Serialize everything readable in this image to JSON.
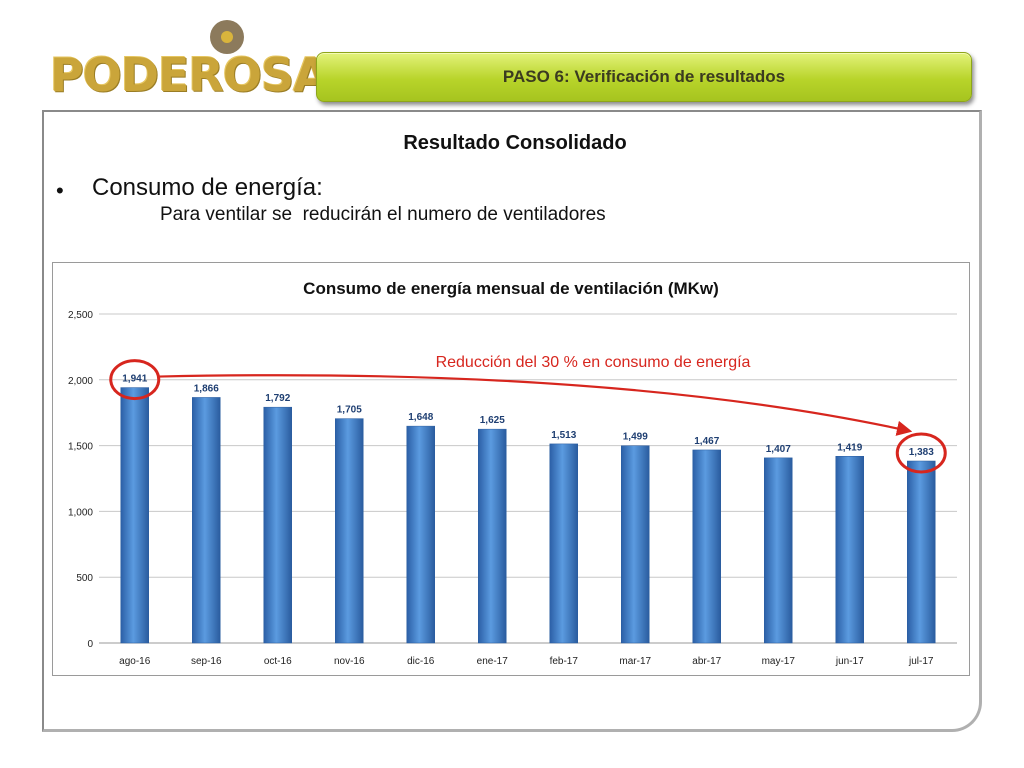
{
  "logo": {
    "text": "PODEROSA"
  },
  "banner": {
    "title": "PASO 6: Verificación de resultados"
  },
  "slide": {
    "heading": "Resultado Consolidado",
    "bullet_marker": "•",
    "bullet": "Consumo de energía:",
    "subtext": "Para ventilar se  reducirán el numero de ventiladores"
  },
  "colors": {
    "bar": "#3f7dc8",
    "annotation": "#d7261e",
    "banner": "#b8d42a",
    "logo": "#caa53a"
  },
  "chart_data": {
    "type": "bar",
    "title": "Consumo de energía mensual de ventilación (MKw)",
    "categories": [
      "ago-16",
      "sep-16",
      "oct-16",
      "nov-16",
      "dic-16",
      "ene-17",
      "feb-17",
      "mar-17",
      "abr-17",
      "may-17",
      "jun-17",
      "jul-17"
    ],
    "values": [
      1941,
      1866,
      1792,
      1705,
      1648,
      1625,
      1513,
      1499,
      1467,
      1407,
      1419,
      1383
    ],
    "value_labels": [
      "1,941",
      "1,866",
      "1,792",
      "1,705",
      "1,648",
      "1,625",
      "1,513",
      "1,499",
      "1,467",
      "1,407",
      "1,419",
      "1,383"
    ],
    "ylim": [
      0,
      2500
    ],
    "yticks": [
      0,
      500,
      1000,
      1500,
      2000,
      2500
    ],
    "ytick_labels": [
      "0",
      "500",
      "1,000",
      "1,500",
      "2,000",
      "2,500"
    ],
    "grid": true,
    "legend": "none",
    "annotation": {
      "text": "Reducción del 30 % en consumo de energía",
      "from_category": "ago-16",
      "to_category": "jul-17",
      "highlighted": [
        "ago-16",
        "jul-17"
      ]
    }
  }
}
